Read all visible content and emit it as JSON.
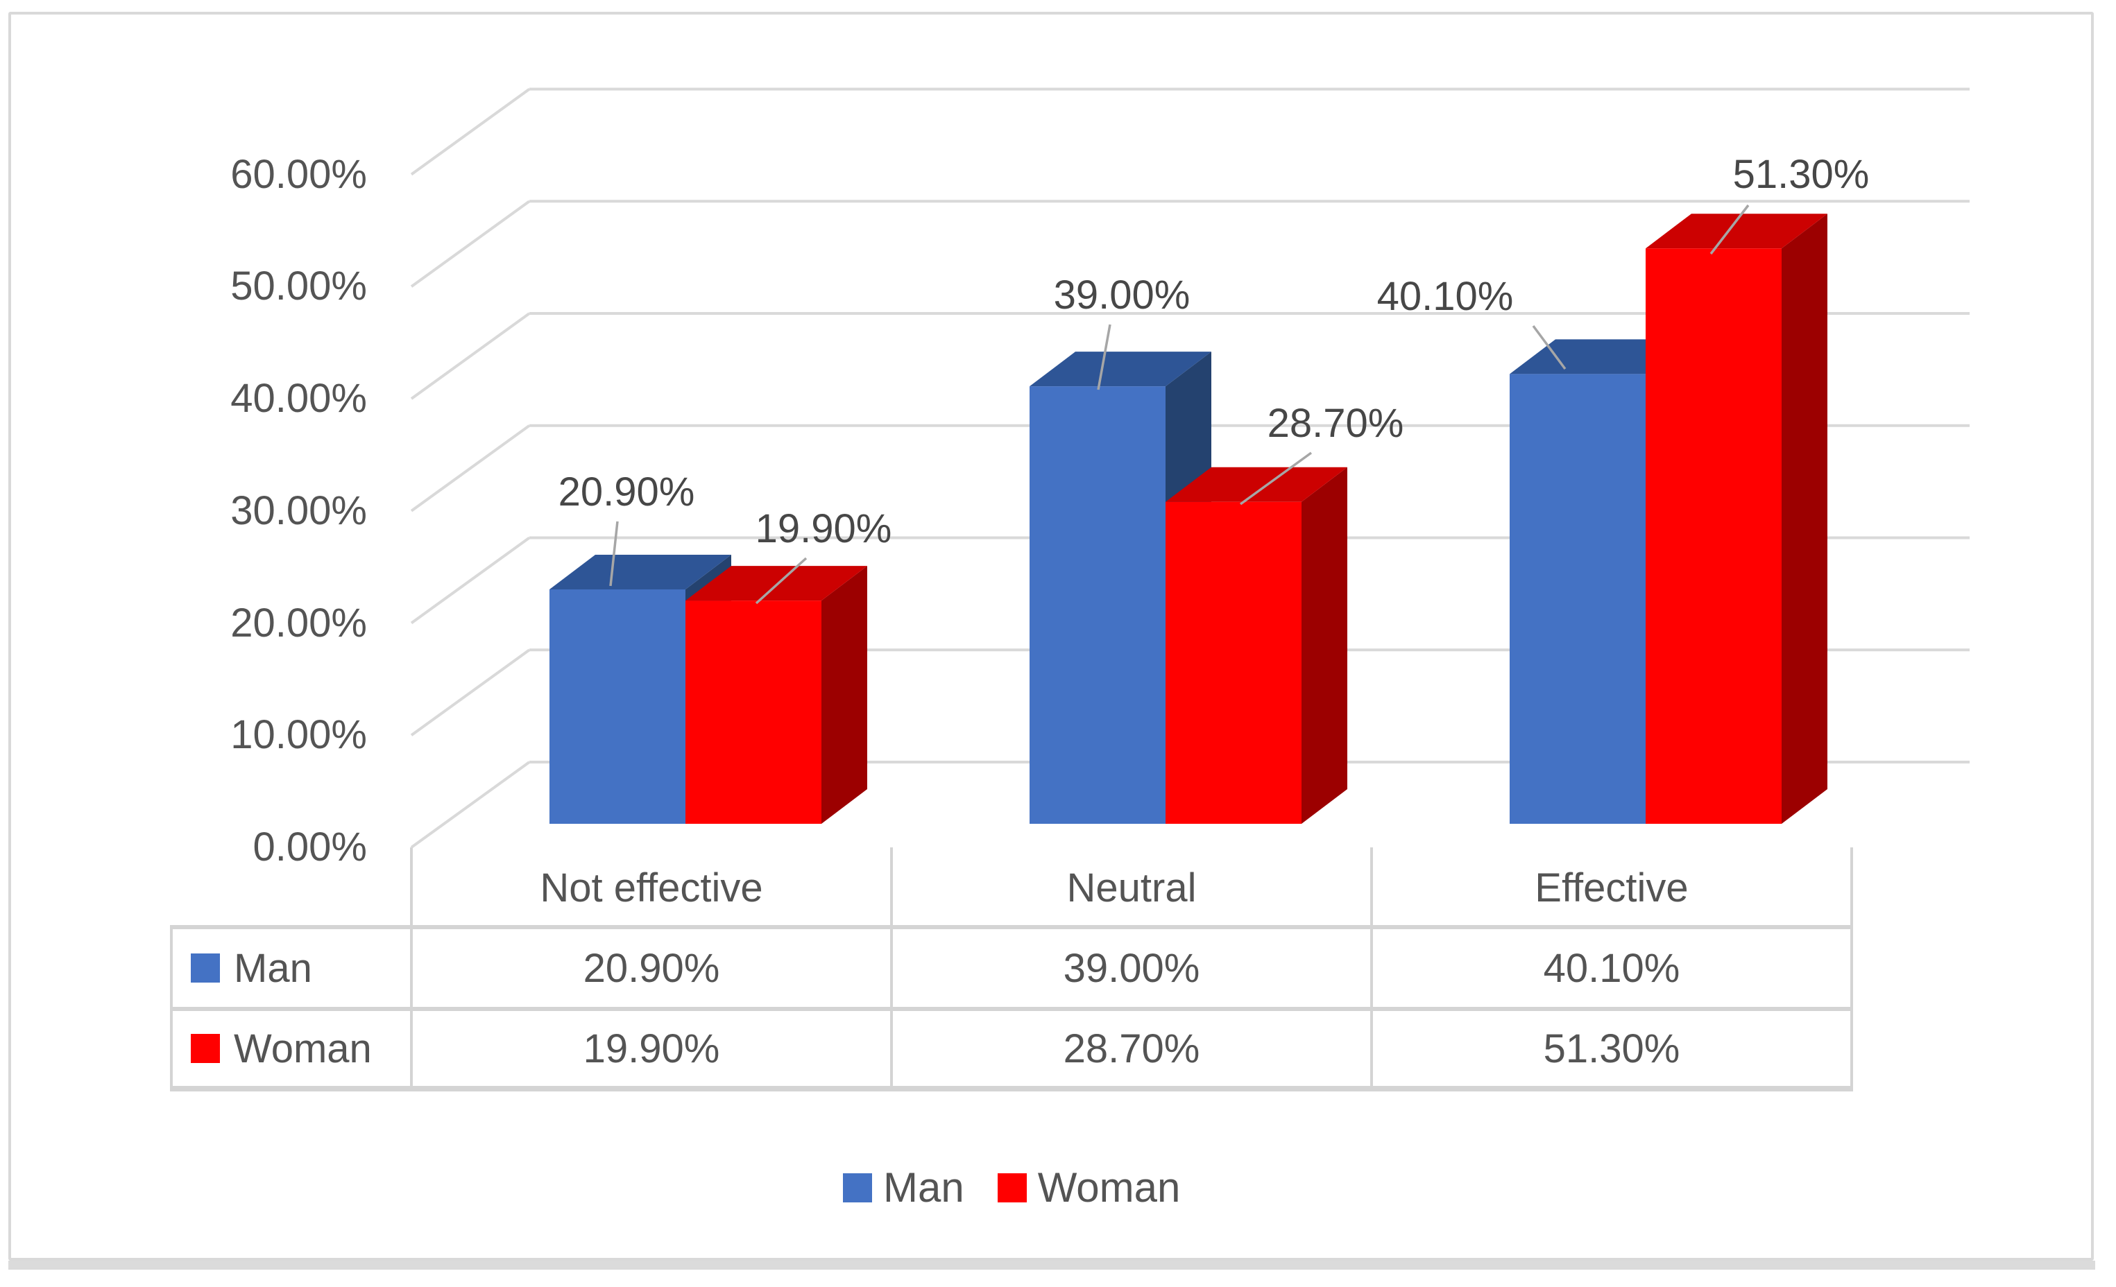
{
  "chart_data": {
    "type": "bar",
    "variant": "3d-clustered-column",
    "title": "",
    "categories": [
      "Not effective",
      "Neutral",
      "Effective"
    ],
    "series": [
      {
        "name": "Man",
        "color": "#4472C4",
        "color_top": "#2E5596",
        "color_side": "#24426F",
        "values": [
          20.9,
          39.0,
          40.1
        ],
        "data_labels": [
          "20.90%",
          "39.00%",
          "40.10%"
        ]
      },
      {
        "name": "Woman",
        "color": "#FF0000",
        "color_top": "#CC0101",
        "color_side": "#9C0000",
        "values": [
          19.9,
          28.7,
          51.3
        ],
        "data_labels": [
          "19.90%",
          "28.70%",
          "51.30%"
        ]
      }
    ],
    "y_axis": {
      "min": 0,
      "max": 60,
      "step": 10,
      "tick_labels": [
        "0.00%",
        "10.00%",
        "20.00%",
        "30.00%",
        "40.00%",
        "50.00%",
        "60.00%"
      ]
    },
    "legend": {
      "position": "bottom",
      "entries": [
        "Man",
        "Woman"
      ]
    },
    "gridlines": true,
    "grid_color": "#D9D9D9",
    "leader_line_color": "#A6A6A6",
    "axis_text_color": "#545454",
    "label_text_color": "#474747",
    "frame_color": "#D9D9D9",
    "data_table_shown": true
  }
}
